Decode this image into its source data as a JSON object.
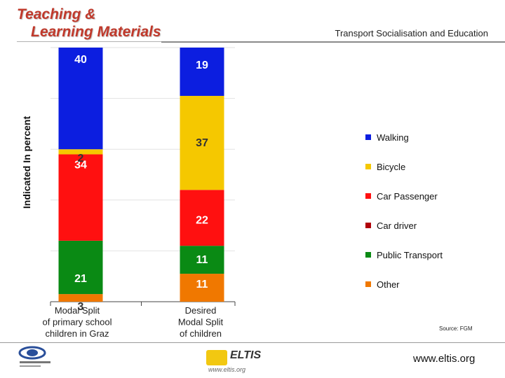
{
  "header": {
    "title_line1": "Teaching &",
    "title_line2": "Learning Materials",
    "subtitle": "Transport Socialisation and Education"
  },
  "chart_data": {
    "type": "bar",
    "stacked": true,
    "ylabel": "Indicated In percent",
    "ylim": [
      0,
      100
    ],
    "grid": true,
    "legend_position": "right",
    "categories": [
      "Modal Split\nof primary school\nchildren in Graz",
      "Desired\nModal Split\nof children"
    ],
    "category_lines": [
      [
        "Modal Split",
        "of primary school",
        "children in Graz"
      ],
      [
        "Desired",
        "Modal Split",
        "of children"
      ]
    ],
    "series": [
      {
        "name": "Other",
        "color": "#f07800",
        "values": [
          3,
          11
        ]
      },
      {
        "name": "Public Transport",
        "color": "#0a8a14",
        "values": [
          21,
          11
        ]
      },
      {
        "name": "Car driver",
        "color": "#b0000a",
        "values": [
          0,
          0
        ]
      },
      {
        "name": "Car Passenger",
        "color": "#ff1010",
        "values": [
          34,
          22
        ]
      },
      {
        "name": "Bicycle",
        "color": "#f5c800",
        "values": [
          2,
          37
        ]
      },
      {
        "name": "Walking",
        "color": "#0c1ee0",
        "values": [
          40,
          19
        ]
      }
    ],
    "legend_order": [
      "Walking",
      "Bicycle",
      "Car Passenger",
      "Car driver",
      "Public Transport",
      "Other"
    ]
  },
  "footer": {
    "source": "Source: FGM",
    "url": "www.eltis.org",
    "eltis_logo": "ELTIS",
    "eltis_url": "www.eltis.org",
    "left_logo": "organisation-logo"
  }
}
